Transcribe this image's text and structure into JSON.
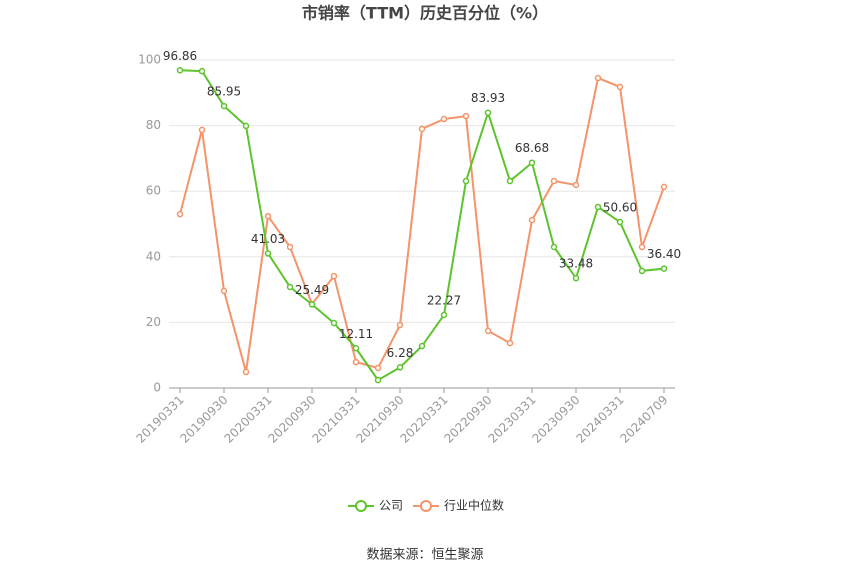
{
  "chart_data": {
    "type": "line",
    "title": "市销率（TTM）历史百分位（%）",
    "categories": [
      "20190331",
      null,
      "20190930",
      null,
      "20200331",
      null,
      "20200930",
      null,
      "20210331",
      null,
      "20210930",
      null,
      "20220331",
      null,
      "20220930",
      null,
      "20230331",
      null,
      "20230930",
      null,
      "20240331",
      null,
      "20240709"
    ],
    "series": [
      {
        "name": "公司",
        "color": "#5ec42e",
        "values": [
          96.86,
          96.6,
          85.95,
          79.9,
          41.03,
          30.8,
          25.49,
          19.8,
          12.11,
          2.4,
          6.28,
          12.8,
          22.27,
          63.1,
          83.93,
          63.1,
          68.68,
          43.0,
          33.48,
          55.2,
          50.6,
          35.7,
          36.4
        ],
        "value_labels": [
          "96.86",
          null,
          "85.95",
          null,
          "41.03",
          null,
          "25.49",
          null,
          "12.11",
          null,
          "6.28",
          null,
          "22.27",
          null,
          "83.93",
          null,
          "68.68",
          null,
          "33.48",
          null,
          "50.60",
          null,
          "36.40"
        ]
      },
      {
        "name": "行业中位数",
        "color": "#f4946a",
        "values": [
          53.0,
          78.7,
          29.6,
          4.9,
          52.4,
          43.0,
          25.6,
          34.1,
          7.9,
          6.1,
          19.2,
          79.0,
          82.0,
          82.9,
          17.4,
          13.7,
          51.2,
          63.1,
          61.9,
          94.5,
          91.8,
          43.0,
          61.3
        ]
      }
    ],
    "ylim": [
      0,
      100
    ],
    "yticks": [
      0,
      20,
      40,
      60,
      80,
      100
    ],
    "grid": true,
    "legend": "bottom",
    "source": "数据来源：恒生聚源"
  }
}
